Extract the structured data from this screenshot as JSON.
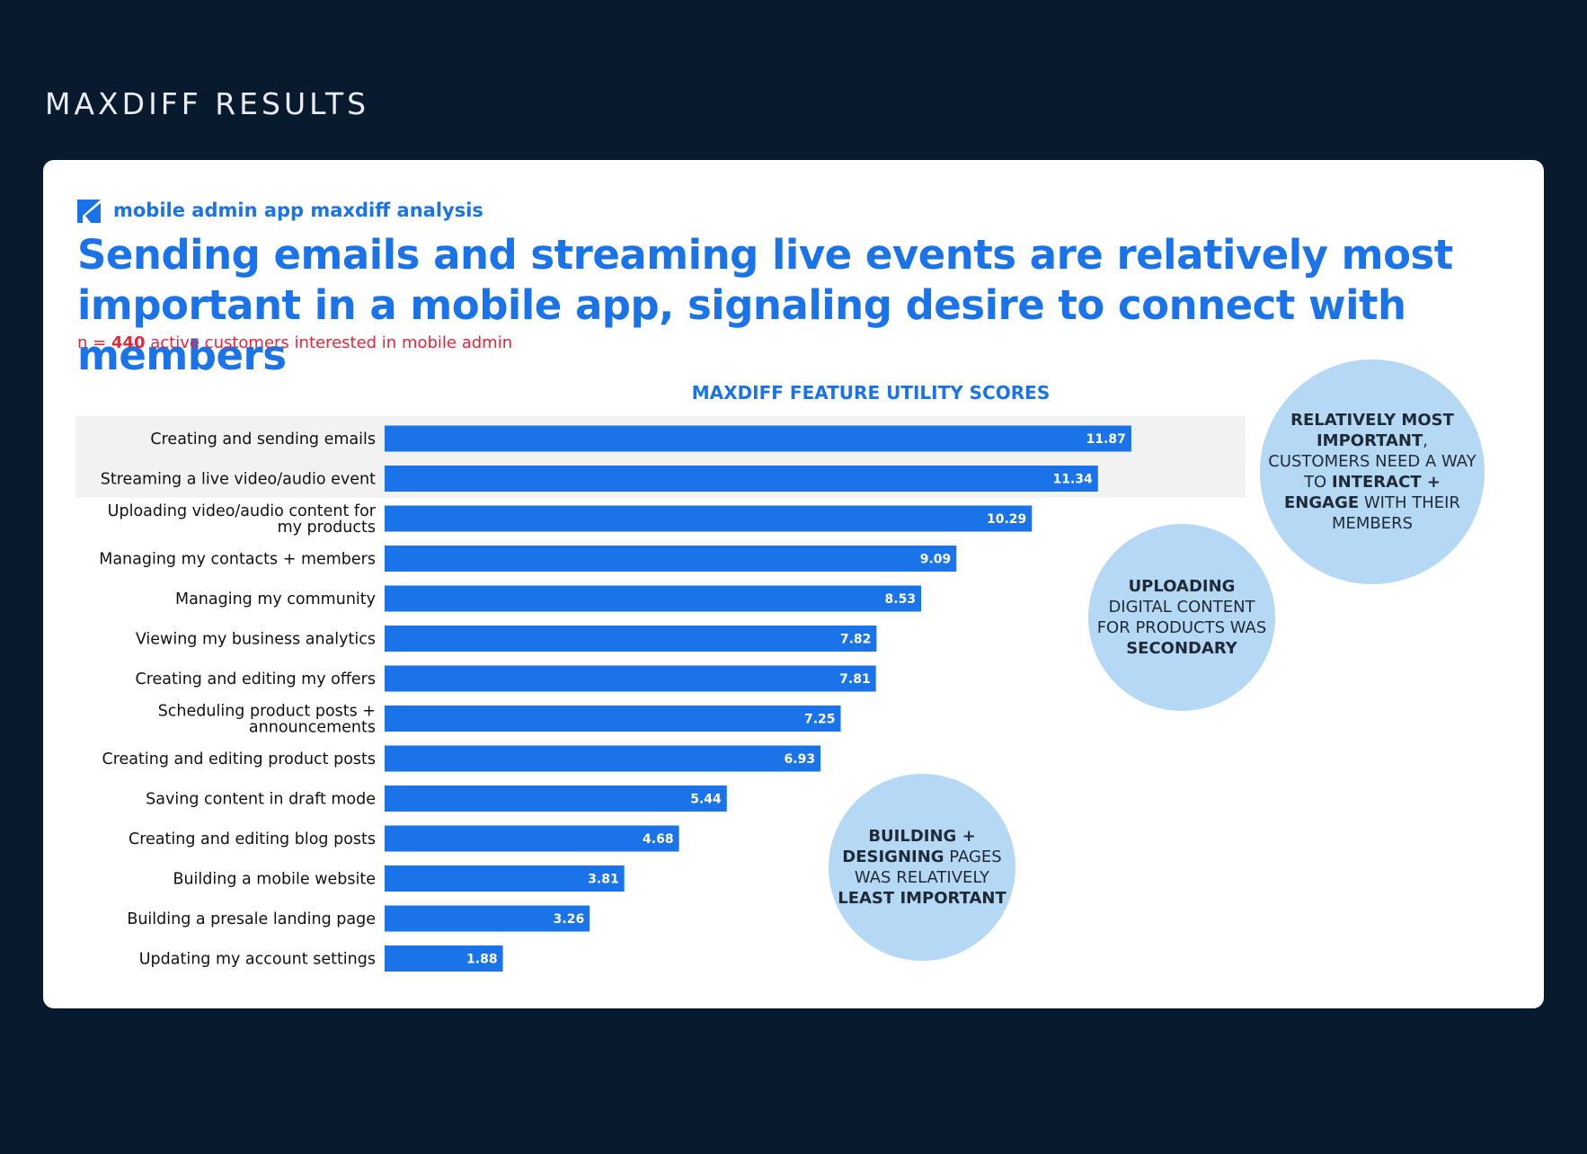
{
  "page": {
    "heading": "MAXDIFF RESULTS",
    "brand_color": "#1a73e8",
    "background_color": "#081a2e"
  },
  "card": {
    "logo": "kajabi-logo-icon",
    "subtitle": "mobile admin app maxdiff analysis",
    "headline": "Sending emails and streaming live events are relatively most important in a mobile app, signaling desire to connect with members",
    "sample": {
      "prefix": "n = ",
      "count": "440",
      "suffix": " active customers interested in mobile admin"
    }
  },
  "chart_data": {
    "type": "bar",
    "orientation": "horizontal",
    "title": "MAXDIFF FEATURE UTILITY SCORES",
    "categories": [
      [
        "Creating and sending emails"
      ],
      [
        "Streaming a live video/audio event"
      ],
      [
        "Uploading video/audio content for",
        "my products"
      ],
      [
        "Managing my contacts + members"
      ],
      [
        "Managing my community"
      ],
      [
        "Viewing my business analytics"
      ],
      [
        "Creating and editing my offers"
      ],
      [
        "Scheduling product posts +",
        "announcements"
      ],
      [
        "Creating and editing product posts"
      ],
      [
        "Saving content in draft mode"
      ],
      [
        "Creating and editing blog posts"
      ],
      [
        "Building a mobile website"
      ],
      [
        "Building a presale landing page"
      ],
      [
        "Updating my account settings"
      ]
    ],
    "values": [
      11.87,
      11.34,
      10.29,
      9.09,
      8.53,
      7.82,
      7.81,
      7.25,
      6.93,
      5.44,
      4.68,
      3.81,
      3.26,
      1.88
    ],
    "value_labels": [
      "11.87",
      "11.34",
      "10.29",
      "9.09",
      "8.53",
      "7.82",
      "7.81",
      "7.25",
      "6.93",
      "5.44",
      "4.68",
      "3.81",
      "3.26",
      "1.88"
    ],
    "highlighted_count": 2,
    "xlim": [
      0,
      12
    ],
    "bar_color": "#1a73e8",
    "highlight_color": "#f2f2f2"
  },
  "callouts": {
    "top": [
      {
        "text": "RELATIVELY MOST IMPORTANT",
        "bold": true
      },
      {
        "text": ", CUSTOMERS NEED A WAY TO ",
        "bold": false
      },
      {
        "text": "INTERACT + ENGAGE",
        "bold": true
      },
      {
        "text": " WITH THEIR MEMBERS",
        "bold": false
      }
    ],
    "middle": [
      {
        "text": "UPLOADING",
        "bold": true
      },
      {
        "text": " DIGITAL CONTENT FOR PRODUCTS WAS ",
        "bold": false
      },
      {
        "text": "SECONDARY",
        "bold": true
      }
    ],
    "bottom": [
      {
        "text": "BUILDING + DESIGNING",
        "bold": true
      },
      {
        "text": " PAGES WAS RELATIVELY ",
        "bold": false
      },
      {
        "text": "LEAST IMPORTANT",
        "bold": true
      }
    ],
    "color": "#b5d8f5"
  }
}
